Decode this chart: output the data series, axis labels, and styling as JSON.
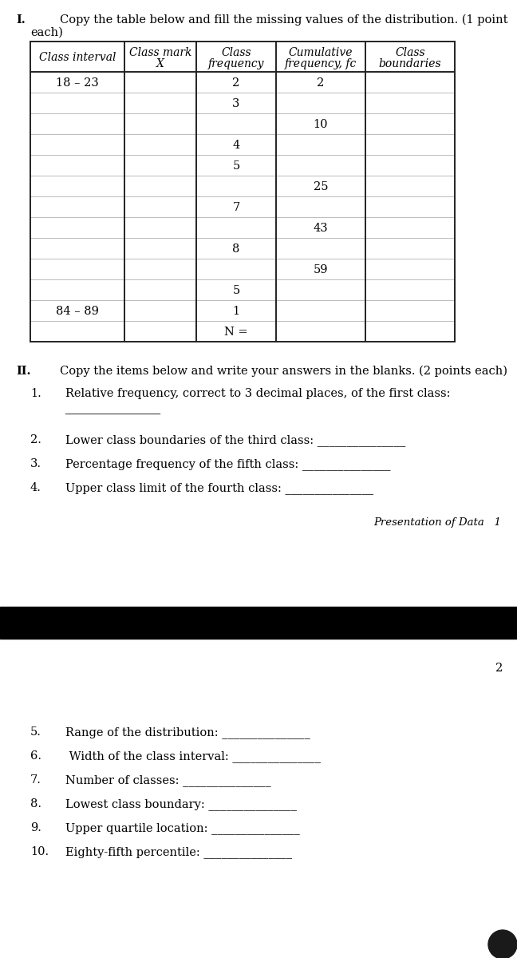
{
  "title_I": "I.",
  "title_I_text1": "Copy the table below and fill the missing values of the distribution. (1 point",
  "title_I_text2": "each)",
  "table_headers": [
    "Class interval",
    "Class mark\nX",
    "Class\nfrequency",
    "Cumulative\nfrequency, fc",
    "Class\nboundaries"
  ],
  "table_rows": [
    [
      "18 – 23",
      "",
      "2",
      "2",
      ""
    ],
    [
      "",
      "",
      "3",
      "",
      ""
    ],
    [
      "",
      "",
      "",
      "10",
      ""
    ],
    [
      "",
      "",
      "4",
      "",
      ""
    ],
    [
      "",
      "",
      "5",
      "",
      ""
    ],
    [
      "",
      "",
      "",
      "25",
      ""
    ],
    [
      "",
      "",
      "7",
      "",
      ""
    ],
    [
      "",
      "",
      "",
      "43",
      ""
    ],
    [
      "",
      "",
      "8",
      "",
      ""
    ],
    [
      "",
      "",
      "",
      "59",
      ""
    ],
    [
      "",
      "",
      "5",
      "",
      ""
    ],
    [
      "84 – 89",
      "",
      "1",
      "",
      ""
    ],
    [
      "",
      "",
      "N =",
      "",
      ""
    ]
  ],
  "section_II_title": "II.",
  "section_II_text": "Copy the items below and write your answers in the blanks. (2 points each)",
  "item1_num": "1.",
  "item1_text": "Relative frequency, correct to 3 decimal places, of the first class:",
  "items_p1": [
    {
      "num": "2.",
      "text": "Lower class boundaries of the third class: _______________"
    },
    {
      "num": "3.",
      "text": "Percentage frequency of the fifth class: _______________"
    },
    {
      "num": "4.",
      "text": "Upper class limit of the fourth class: _______________"
    }
  ],
  "footer_text": "Presentation of Data   1",
  "page2_num": "2",
  "items_p2": [
    {
      "num": "5.",
      "text": "Range of the distribution: _______________"
    },
    {
      "num": "6.",
      "text": " Width of the class interval: _______________"
    },
    {
      "num": "7.",
      "text": "Number of classes: _______________"
    },
    {
      "num": "8.",
      "text": "Lowest class boundary: _______________"
    },
    {
      "num": "9.",
      "text": "Upper quartile location: _______________"
    },
    {
      "num": "10.",
      "text": "Eighty-fifth percentile: _______________"
    }
  ],
  "bg_color": "#ffffff",
  "text_color": "#000000",
  "black_bar_color": "#000000",
  "font_size": 10.5,
  "font_size_footer": 9.5
}
